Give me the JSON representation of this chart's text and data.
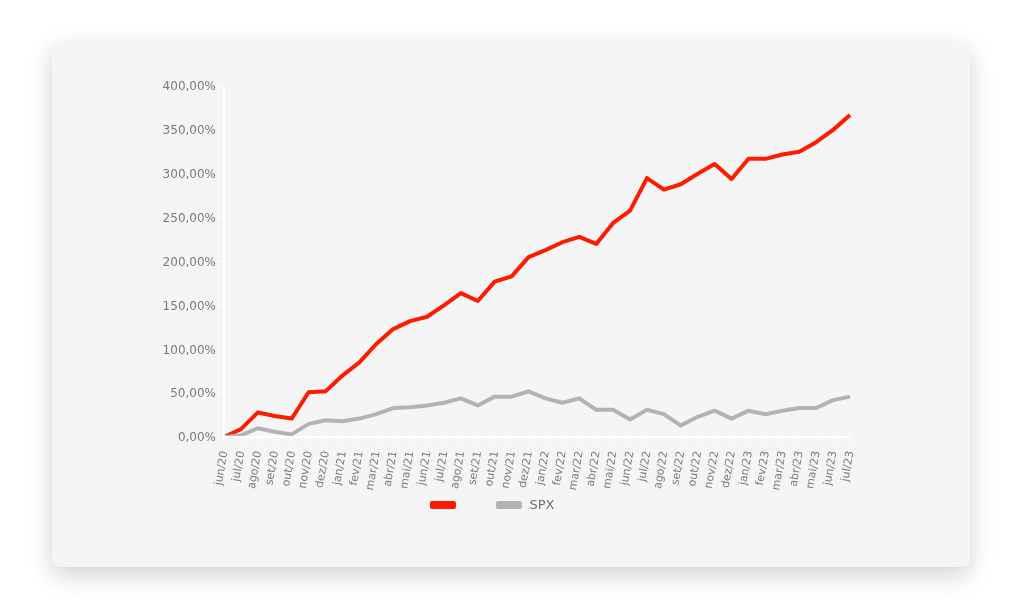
{
  "chart_data": {
    "type": "line",
    "categories": [
      "jun/20",
      "jul/20",
      "ago/20",
      "set/20",
      "out/20",
      "nov/20",
      "dez/20",
      "jan/21",
      "fev/21",
      "mar/21",
      "abr/21",
      "mai/21",
      "jun/21",
      "jul/21",
      "ago/21",
      "set/21",
      "out/21",
      "nov/21",
      "dez/21",
      "jan/22",
      "fev/22",
      "mar/22",
      "abr/22",
      "mai/22",
      "jun/22",
      "jul/22",
      "ago/22",
      "set/22",
      "out/22",
      "nov/22",
      "dez/22",
      "jan/23",
      "fev/23",
      "mar/23",
      "abr/23",
      "mai/23",
      "jun/23",
      "jul/23"
    ],
    "series": [
      {
        "color": "#ff1a00",
        "values": [
          0,
          9,
          28,
          24,
          21,
          51,
          52,
          70,
          85,
          106,
          123,
          132,
          137,
          150,
          164,
          155,
          177,
          183,
          205,
          213,
          222,
          228,
          220,
          244,
          258,
          295,
          282,
          288,
          300,
          311,
          294,
          317,
          317,
          322,
          325,
          336,
          350,
          367
        ]
      },
      {
        "name": "SPX",
        "color": "#b3b3b3",
        "values": [
          0,
          2,
          10,
          6,
          3,
          15,
          19,
          18,
          21,
          26,
          33,
          34,
          36,
          39,
          44,
          36,
          46,
          46,
          52,
          44,
          39,
          44,
          31,
          31,
          20,
          31,
          26,
          13,
          23,
          30,
          21,
          30,
          26,
          30,
          33,
          33,
          42,
          46
        ]
      }
    ],
    "ylim": [
      0,
      400
    ],
    "yticks": [
      {
        "value": 0,
        "label": "0,00%"
      },
      {
        "value": 50,
        "label": "50,00%"
      },
      {
        "value": 100,
        "label": "100,00%"
      },
      {
        "value": 150,
        "label": "150,00%"
      },
      {
        "value": 200,
        "label": "200,00%"
      },
      {
        "value": 250,
        "label": "250,00%"
      },
      {
        "value": 300,
        "label": "300,00%"
      },
      {
        "value": 350,
        "label": "350,00%"
      },
      {
        "value": 400,
        "label": "400,00%"
      }
    ],
    "grid": false,
    "legend": "bottom",
    "marker": "none",
    "line_style": "solid"
  }
}
